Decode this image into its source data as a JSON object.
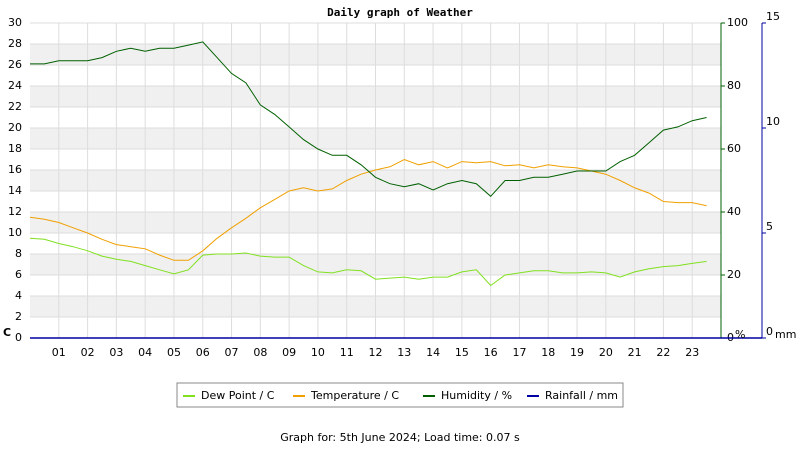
{
  "chart_data": {
    "type": "line",
    "title": "Daily graph of Weather",
    "footer": "Graph for: 5th June 2024; Load time: 0.07 s",
    "y_unit": "C",
    "y2_unit": "%",
    "y3_unit": "mm",
    "x": [
      0,
      0.5,
      1,
      1.5,
      2,
      2.5,
      3,
      3.5,
      4,
      4.5,
      5,
      5.5,
      6,
      6.5,
      7,
      7.5,
      8,
      8.5,
      9,
      9.5,
      10,
      10.5,
      11,
      11.5,
      12,
      12.5,
      13,
      13.5,
      14,
      14.5,
      15,
      15.5,
      16,
      16.5,
      17,
      17.5,
      18,
      18.5,
      19,
      19.5,
      20,
      20.5,
      21,
      21.5,
      22,
      22.5,
      23,
      23.5
    ],
    "xlim": [
      0,
      24
    ],
    "xticks": [
      {
        "value": 1,
        "label": "01"
      },
      {
        "value": 2,
        "label": "02"
      },
      {
        "value": 3,
        "label": "03"
      },
      {
        "value": 4,
        "label": "04"
      },
      {
        "value": 5,
        "label": "05"
      },
      {
        "value": 6,
        "label": "06"
      },
      {
        "value": 7,
        "label": "07"
      },
      {
        "value": 8,
        "label": "08"
      },
      {
        "value": 9,
        "label": "09"
      },
      {
        "value": 10,
        "label": "10"
      },
      {
        "value": 11,
        "label": "11"
      },
      {
        "value": 12,
        "label": "12"
      },
      {
        "value": 13,
        "label": "13"
      },
      {
        "value": 14,
        "label": "14"
      },
      {
        "value": 15,
        "label": "15"
      },
      {
        "value": 16,
        "label": "16"
      },
      {
        "value": 17,
        "label": "17"
      },
      {
        "value": 18,
        "label": "18"
      },
      {
        "value": 19,
        "label": "19"
      },
      {
        "value": 20,
        "label": "20"
      },
      {
        "value": 21,
        "label": "21"
      },
      {
        "value": 22,
        "label": "22"
      },
      {
        "value": 23,
        "label": "23"
      }
    ],
    "ylim": [
      0,
      30
    ],
    "yticks": [
      0,
      2,
      4,
      6,
      8,
      10,
      12,
      14,
      16,
      18,
      20,
      22,
      24,
      26,
      28,
      30
    ],
    "y_color": "#e0a000",
    "y2lim": [
      0,
      100
    ],
    "y2ticks": [
      0,
      20,
      40,
      60,
      80,
      100
    ],
    "y2_color": "#006000",
    "y3lim": [
      0,
      15
    ],
    "y3ticks": [
      0,
      5,
      10,
      15
    ],
    "y3_color": "#0000a0",
    "grid": true,
    "series": [
      {
        "name": "Dew Point / C",
        "color": "#80e020",
        "axis": "y",
        "values": [
          9.5,
          9.4,
          9.0,
          8.7,
          8.3,
          7.8,
          7.5,
          7.3,
          6.9,
          6.5,
          6.1,
          6.5,
          7.9,
          8.0,
          8.0,
          8.1,
          7.8,
          7.7,
          7.7,
          6.9,
          6.3,
          6.2,
          6.5,
          6.4,
          5.6,
          5.7,
          5.8,
          5.6,
          5.8,
          5.8,
          6.3,
          6.5,
          5.0,
          6.0,
          6.2,
          6.4,
          6.4,
          6.2,
          6.2,
          6.3,
          6.2,
          5.8,
          6.3,
          6.6,
          6.8,
          6.9,
          7.1,
          7.3
        ]
      },
      {
        "name": "Temperature / C",
        "color": "#f0a000",
        "axis": "y",
        "values": [
          11.5,
          11.3,
          11.0,
          10.5,
          10.0,
          9.4,
          8.9,
          8.7,
          8.5,
          7.9,
          7.4,
          7.4,
          8.3,
          9.5,
          10.5,
          11.4,
          12.4,
          13.2,
          14.0,
          14.3,
          14.0,
          14.2,
          15.0,
          15.6,
          16.0,
          16.3,
          17.0,
          16.5,
          16.8,
          16.2,
          16.8,
          16.7,
          16.8,
          16.4,
          16.5,
          16.2,
          16.5,
          16.3,
          16.2,
          15.9,
          15.6,
          15.0,
          14.3,
          13.8,
          13.0,
          12.9,
          12.9,
          12.6
        ]
      },
      {
        "name": "Humidity / %",
        "color": "#006000",
        "axis": "y2",
        "values": [
          87,
          87,
          88,
          88,
          88,
          89,
          91,
          92,
          91,
          92,
          92,
          93,
          94,
          89,
          84,
          81,
          74,
          71,
          67,
          63,
          60,
          58,
          58,
          55,
          51,
          49,
          48,
          49,
          47,
          49,
          50,
          49,
          45,
          50,
          50,
          51,
          51,
          52,
          53,
          53,
          53,
          56,
          58,
          62,
          66,
          67,
          69,
          70
        ]
      },
      {
        "name": "Rainfall / mm",
        "color": "#0000a0",
        "axis": "y3",
        "values": [
          0,
          0,
          0,
          0,
          0,
          0,
          0,
          0,
          0,
          0,
          0,
          0,
          0,
          0,
          0,
          0,
          0,
          0,
          0,
          0,
          0,
          0,
          0,
          0,
          0,
          0,
          0,
          0,
          0,
          0,
          0,
          0,
          0,
          0,
          0,
          0,
          0,
          0,
          0,
          0,
          0,
          0,
          0,
          0,
          0,
          0,
          0,
          0
        ]
      }
    ]
  }
}
